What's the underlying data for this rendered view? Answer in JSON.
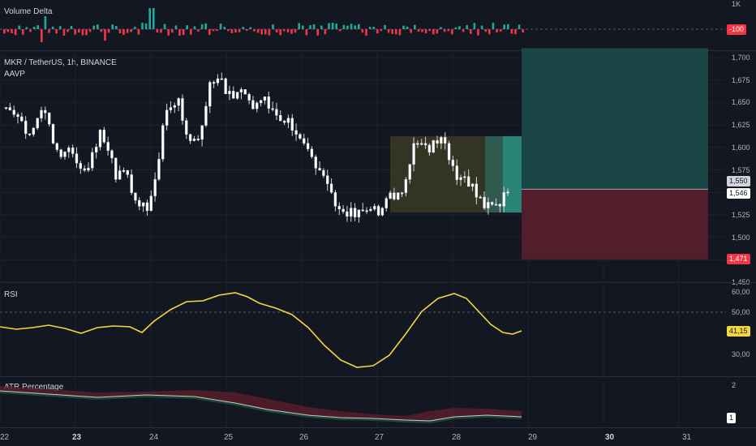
{
  "volume_delta": {
    "title": "Volume Delta",
    "axis_top": "1K",
    "value_tag": "-100"
  },
  "main": {
    "symbol_line": "MKR / TetherUS, 1h, BINANCE",
    "indicator": "AAVP",
    "price_axis": [
      "1,700",
      "1,675",
      "1,650",
      "1,625",
      "1,600",
      "1,575",
      "1,550",
      "1,525",
      "1,500",
      "1,475",
      "1,450"
    ],
    "tags": {
      "upper": "1,550",
      "last": "1,546",
      "stop": "1,471"
    },
    "colors": {
      "up": "#ffffff",
      "down": "#ffffff",
      "profit_zone": "#1b4d4a",
      "loss_zone": "#5b1f2c",
      "range_box": "#3b3a24",
      "highlight": "#26a69a"
    }
  },
  "rsi": {
    "title": "RSI",
    "axis": [
      "60,00",
      "50,00",
      "30,00"
    ],
    "value_tag": "41,15",
    "color": "#f5d63d"
  },
  "atr": {
    "title": "ATR Percentage",
    "axis": [
      "2",
      "1"
    ]
  },
  "time_axis": [
    {
      "label": "22",
      "bold": false
    },
    {
      "label": "23",
      "bold": true
    },
    {
      "label": "24",
      "bold": false
    },
    {
      "label": "25",
      "bold": false
    },
    {
      "label": "26",
      "bold": false
    },
    {
      "label": "27",
      "bold": false
    },
    {
      "label": "28",
      "bold": false
    },
    {
      "label": "29",
      "bold": false
    },
    {
      "label": "30",
      "bold": true
    },
    {
      "label": "31",
      "bold": false
    }
  ],
  "chart_data": {
    "type": "candlestick",
    "price_ylim": [
      1440,
      1710
    ],
    "close_approx": [
      1640,
      1632,
      1625,
      1610,
      1628,
      1634,
      1600,
      1585,
      1595,
      1578,
      1570,
      1590,
      1615,
      1592,
      1560,
      1570,
      1545,
      1530,
      1525,
      1560,
      1620,
      1640,
      1650,
      1610,
      1605,
      1620,
      1668,
      1672,
      1655,
      1650,
      1660,
      1648,
      1645,
      1652,
      1638,
      1625,
      1628,
      1610,
      1600,
      1585,
      1570,
      1555,
      1530,
      1524,
      1528,
      1526,
      1525,
      1530,
      1528,
      1545,
      1545,
      1560,
      1600,
      1600,
      1590,
      1600,
      1600,
      1575,
      1562,
      1552,
      1540,
      1528,
      1532,
      1530,
      1546
    ]
  }
}
